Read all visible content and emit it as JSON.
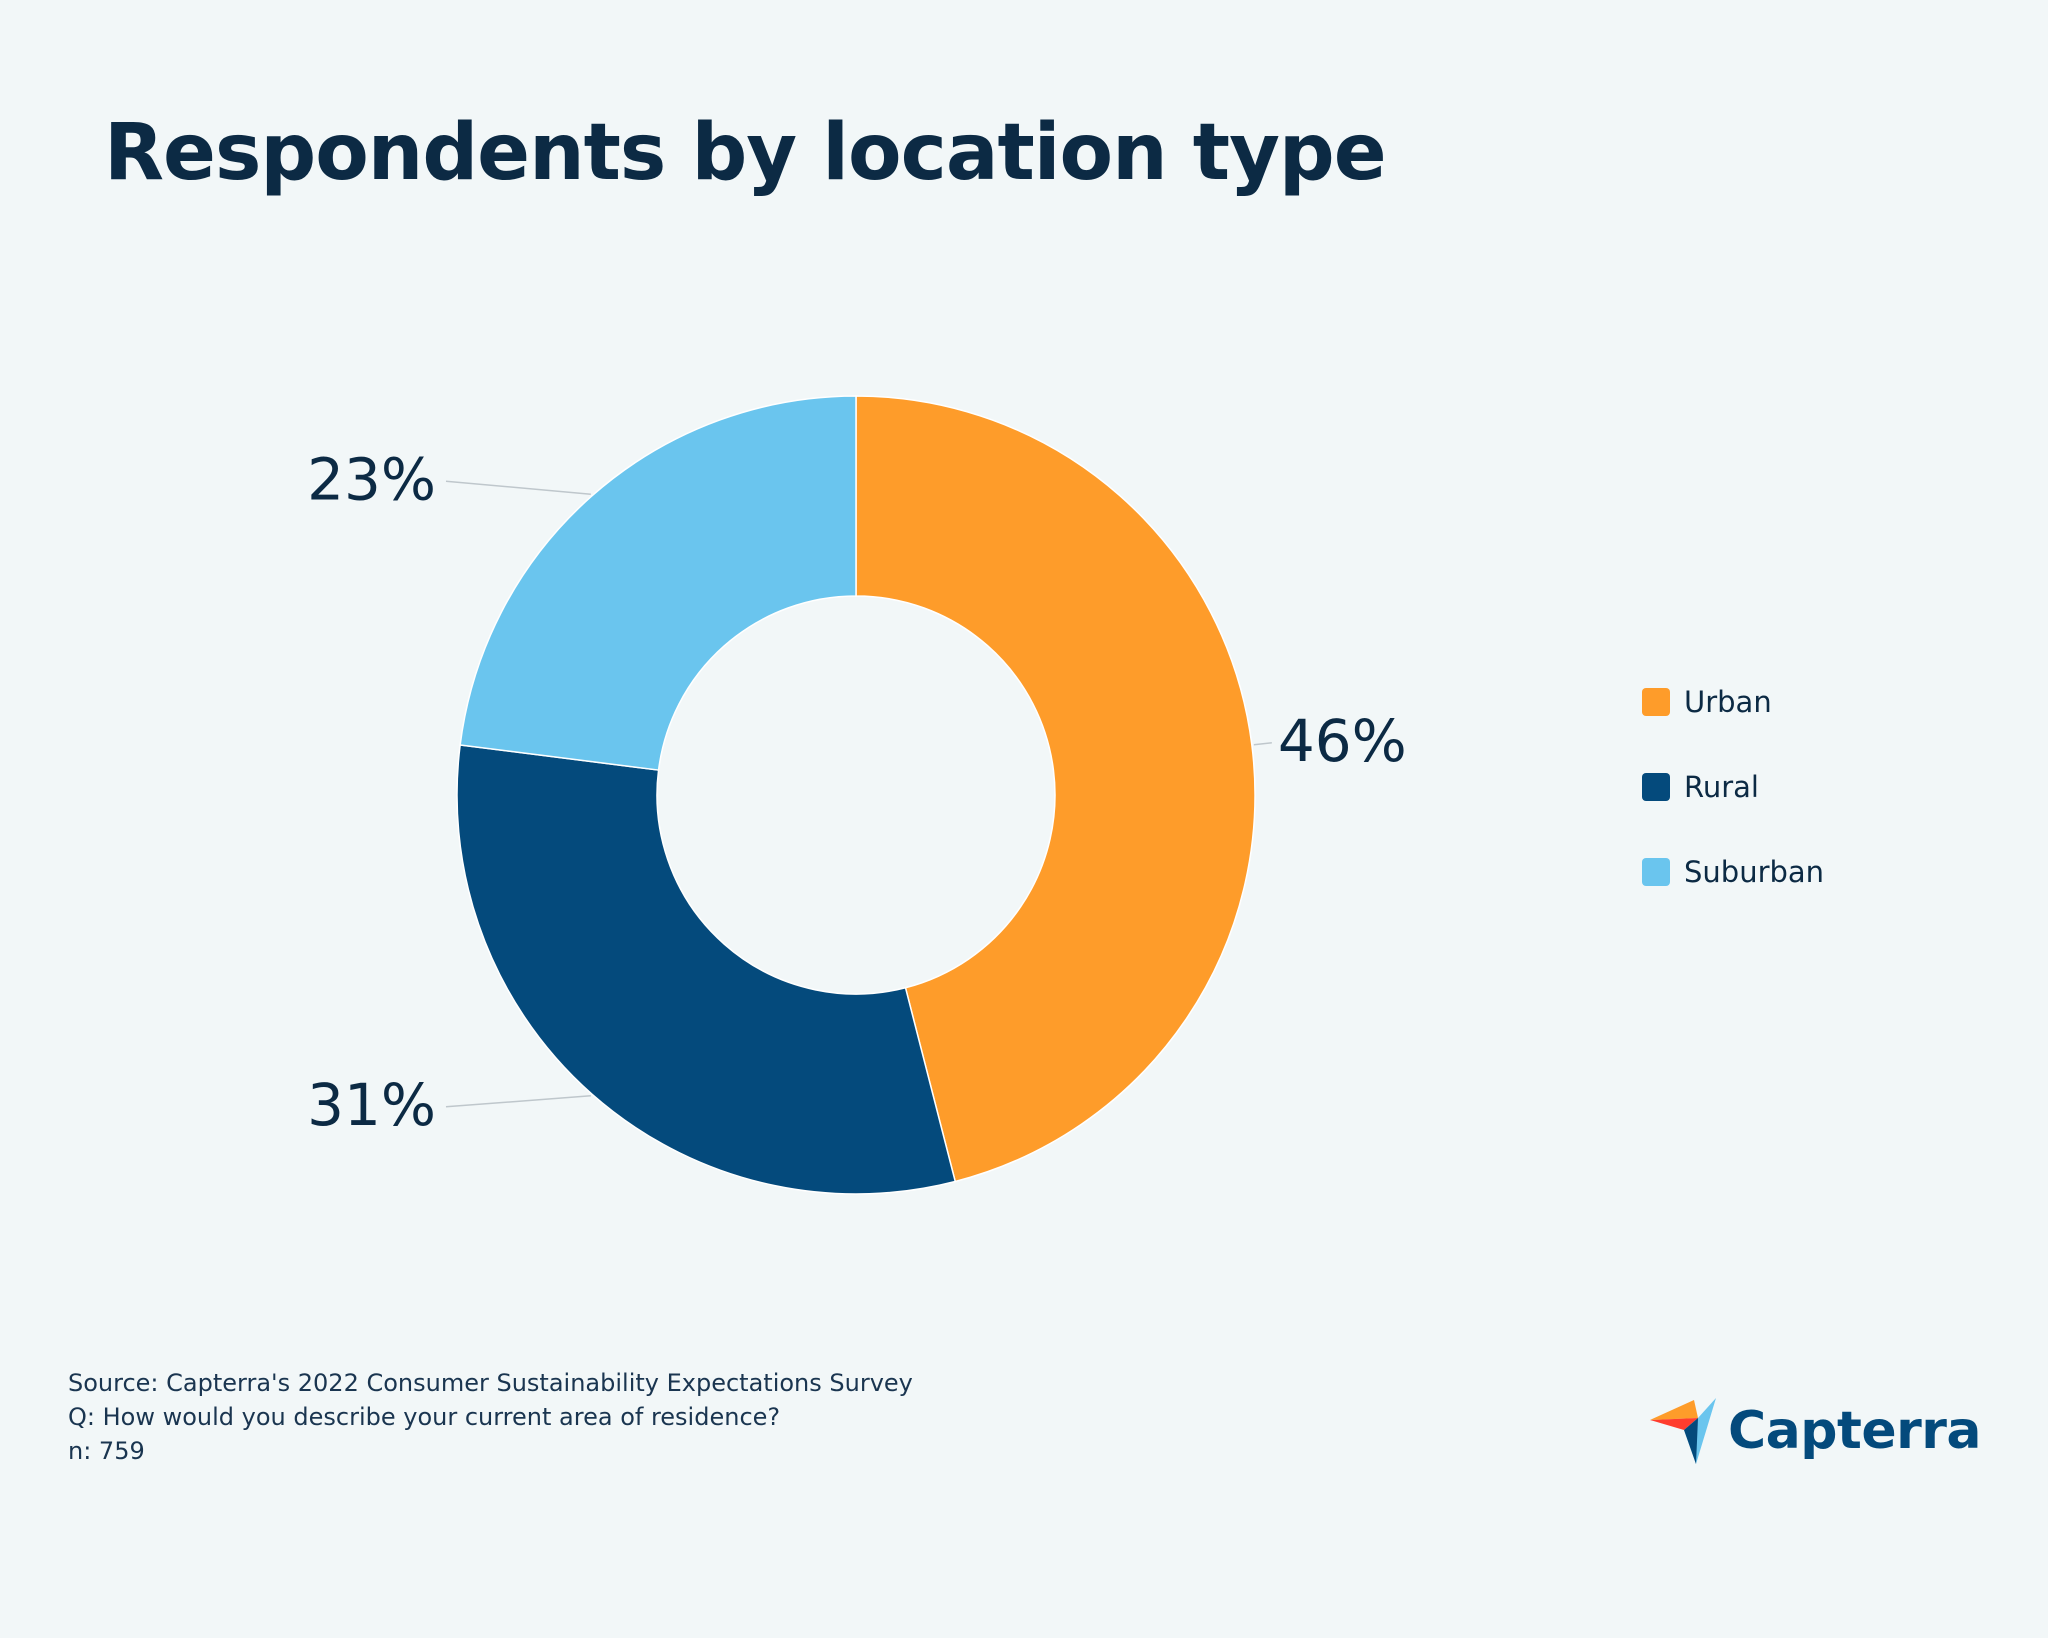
{
  "title": "Respondents by location type",
  "chart_data": {
    "type": "pie",
    "variant": "donut",
    "title": "Respondents by location type",
    "categories": [
      "Urban",
      "Rural",
      "Suburban"
    ],
    "values": [
      46,
      31,
      23
    ],
    "labels": [
      "46%",
      "31%",
      "23%"
    ],
    "unit": "%",
    "colors": [
      "#fe9c2a",
      "#044a7c",
      "#6ac5ee"
    ],
    "legend_position": "right"
  },
  "legend": {
    "items": [
      {
        "label": "Urban",
        "color": "#fe9c2a"
      },
      {
        "label": "Rural",
        "color": "#044a7c"
      },
      {
        "label": "Suburban",
        "color": "#6ac5ee"
      }
    ]
  },
  "footnote": {
    "source": "Source: Capterra's 2022 Consumer Sustainability Expectations Survey",
    "question": "Q: How would you describe your current area of residence?",
    "sample": "n: 759"
  },
  "logo": {
    "text": "Capterra"
  }
}
